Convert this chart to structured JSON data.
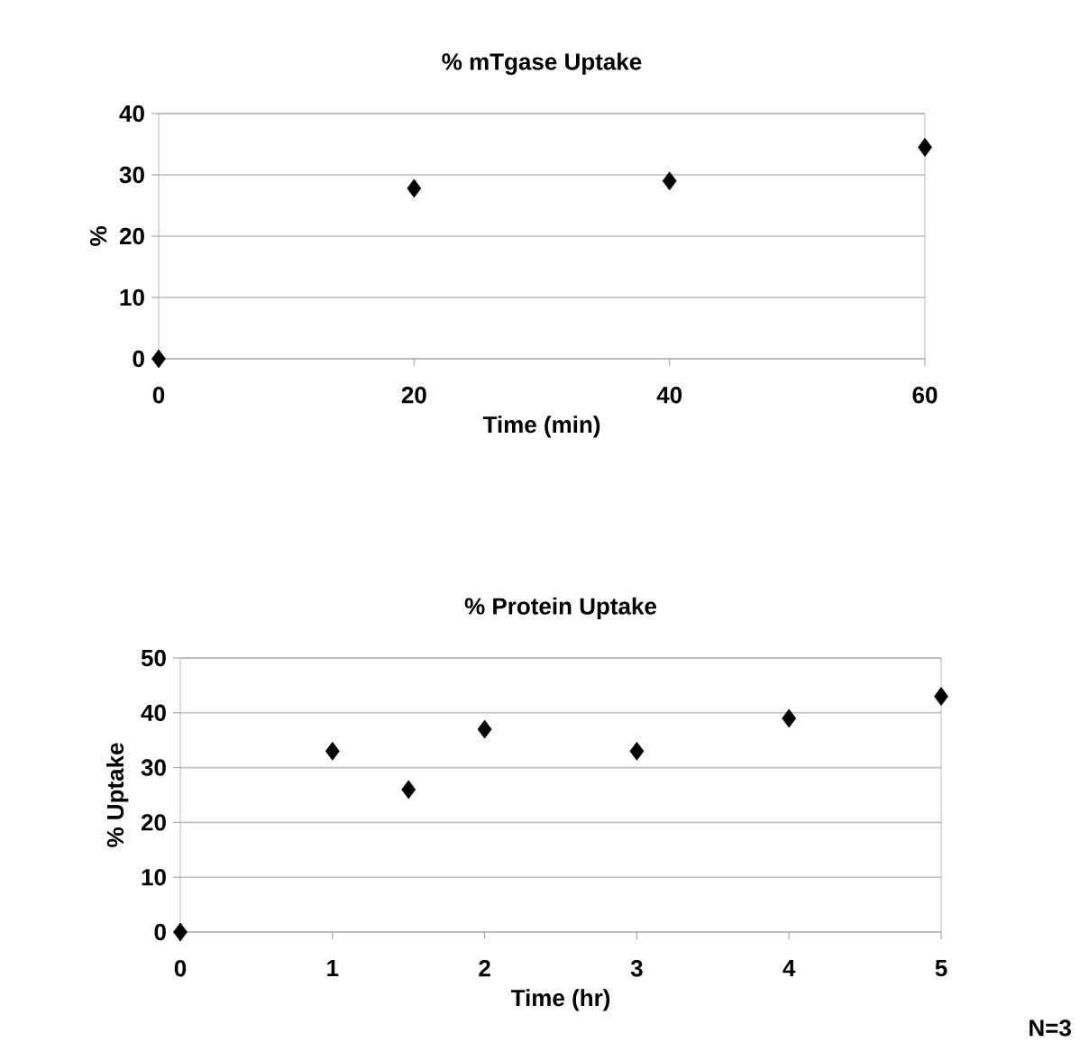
{
  "chart_data": [
    {
      "type": "scatter",
      "title": "% mTgase Uptake",
      "xlabel": "Time (min)",
      "ylabel": "%",
      "x": [
        0,
        20,
        40,
        60
      ],
      "series": [
        {
          "color": "#000000",
          "values": [
            0,
            27.8,
            29,
            34.5
          ]
        }
      ],
      "xlim": [
        0,
        60
      ],
      "ylim": [
        0,
        40
      ],
      "xticks": [
        0,
        20,
        40,
        60
      ],
      "yticks": [
        0,
        10,
        20,
        30,
        40
      ],
      "grid": "y",
      "marker": "diamond"
    },
    {
      "type": "scatter",
      "title": "% Protein Uptake",
      "xlabel": "Time (hr)",
      "ylabel": "% Uptake",
      "x": [
        0,
        1,
        1.5,
        2,
        3,
        4,
        5
      ],
      "series": [
        {
          "color": "#000000",
          "values": [
            0,
            33,
            26,
            37,
            33,
            39,
            43
          ]
        }
      ],
      "xlim": [
        0,
        5
      ],
      "ylim": [
        0,
        50
      ],
      "xticks": [
        0,
        1,
        2,
        3,
        4,
        5
      ],
      "yticks": [
        0,
        10,
        20,
        30,
        40,
        50
      ],
      "grid": "y",
      "marker": "diamond",
      "annotations": [
        "N=3"
      ]
    }
  ]
}
